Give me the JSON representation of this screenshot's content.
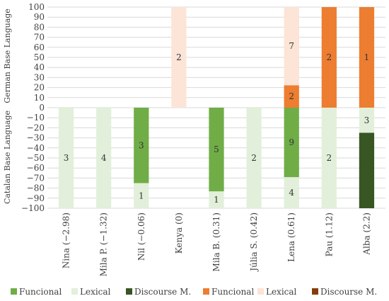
{
  "chart_data": {
    "type": "bar",
    "stacked": true,
    "categories": [
      "Nina (−2.98)",
      "Mila P. (−1.32)",
      "Nil (−0.06)",
      "Kenya (0)",
      "Mila B. (0.31)",
      "Júlia S. (0.42)",
      "Lena (0.61)",
      "Pau (1.12)",
      "Alba (2.2)"
    ],
    "ylim": [
      -100,
      100
    ],
    "yticks": [
      100,
      90,
      80,
      70,
      60,
      50,
      40,
      30,
      20,
      10,
      0,
      -10,
      -20,
      -30,
      -40,
      -50,
      -60,
      -70,
      -80,
      -90,
      -100
    ],
    "ytick_labels": [
      "100",
      "90",
      "80",
      "70",
      "60",
      "50",
      "40",
      "30",
      "20",
      "10",
      "0",
      "−10",
      "−20",
      "−30",
      "−40",
      "−50",
      "−60",
      "−70",
      "−80",
      "−90",
      "−100"
    ],
    "ylabel_top": "German Base Language",
    "ylabel_bottom": "Catalan Base Language",
    "grid": true,
    "legend_position": "bottom",
    "series": [
      {
        "name": "Funcional",
        "group": "Catalan",
        "color": "#70ad47",
        "values": [
          0,
          0,
          -75,
          0,
          -83.3,
          0,
          -69.2,
          0,
          0
        ],
        "labels": [
          "",
          "",
          "3",
          "",
          "5",
          "",
          "9",
          "",
          ""
        ]
      },
      {
        "name": "Lexical",
        "group": "Catalan",
        "color": "#e2efda",
        "values": [
          -100,
          -100,
          -25,
          0,
          -16.7,
          -100,
          -30.8,
          -100,
          -25
        ],
        "labels": [
          "3",
          "4",
          "1",
          "",
          "1",
          "2",
          "4",
          "2",
          "3"
        ]
      },
      {
        "name": "Discourse M.",
        "group": "Catalan",
        "color": "#375623",
        "values": [
          0,
          0,
          0,
          0,
          0,
          0,
          0,
          0,
          -75
        ],
        "labels": [
          "",
          "",
          "",
          "",
          "",
          "",
          "",
          "",
          ""
        ]
      },
      {
        "name": "Funcional",
        "group": "German",
        "color": "#ed7d31",
        "values": [
          0,
          0,
          0,
          0,
          0,
          0,
          22.2,
          100,
          100
        ],
        "labels": [
          "",
          "",
          "",
          "",
          "",
          "",
          "2",
          "2",
          "1"
        ]
      },
      {
        "name": "Lexical",
        "group": "German",
        "color": "#fce4d6",
        "values": [
          0,
          0,
          0,
          100,
          0,
          0,
          77.8,
          0,
          0
        ],
        "labels": [
          "",
          "",
          "",
          "2",
          "",
          "",
          "7",
          "",
          ""
        ]
      },
      {
        "name": "Discourse M.",
        "group": "German",
        "color": "#843c0c",
        "values": [
          0,
          0,
          0,
          0,
          0,
          0,
          0,
          0,
          0
        ],
        "labels": [
          "",
          "",
          "",
          "",
          "",
          "",
          "",
          "",
          ""
        ]
      }
    ]
  }
}
